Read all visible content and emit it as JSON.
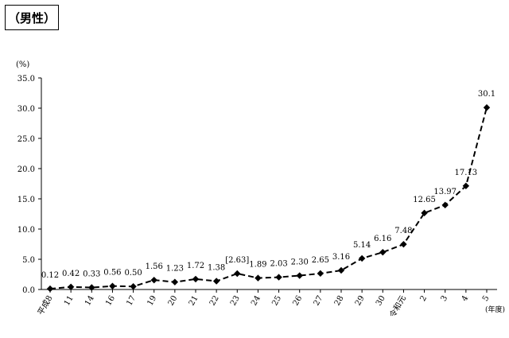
{
  "header": {
    "title": "（男性）"
  },
  "chart_data": {
    "type": "line",
    "title": "（男性）",
    "ylabel": "(%)",
    "xunit": "(年度)",
    "ylim": [
      0,
      35
    ],
    "yticks": [
      "0.0",
      "5.0",
      "10.0",
      "15.0",
      "20.0",
      "25.0",
      "30.0",
      "35.0"
    ],
    "grid": false,
    "line_style": "dashed",
    "marker": "diamond",
    "color": "#000000",
    "categories": [
      "平成8",
      "11",
      "14",
      "16",
      "17",
      "19",
      "20",
      "21",
      "22",
      "23",
      "24",
      "25",
      "26",
      "27",
      "28",
      "29",
      "30",
      "令和元",
      "2",
      "3",
      "4",
      "5"
    ],
    "values": [
      0.12,
      0.42,
      0.33,
      0.56,
      0.5,
      1.56,
      1.23,
      1.72,
      1.38,
      2.63,
      1.89,
      2.03,
      2.3,
      2.65,
      3.16,
      5.14,
      6.16,
      7.48,
      12.65,
      13.97,
      17.13,
      30.1
    ],
    "labels": [
      "0.12",
      "0.42",
      "0.33",
      "0.56",
      "0.50",
      "1.56",
      "1.23",
      "1.72",
      "1.38",
      "[2.63]",
      "1.89",
      "2.03",
      "2.30",
      "2.65",
      "3.16",
      "5.14",
      "6.16",
      "7.48",
      "12.65",
      "13.97",
      "17.13",
      "30.1"
    ]
  }
}
